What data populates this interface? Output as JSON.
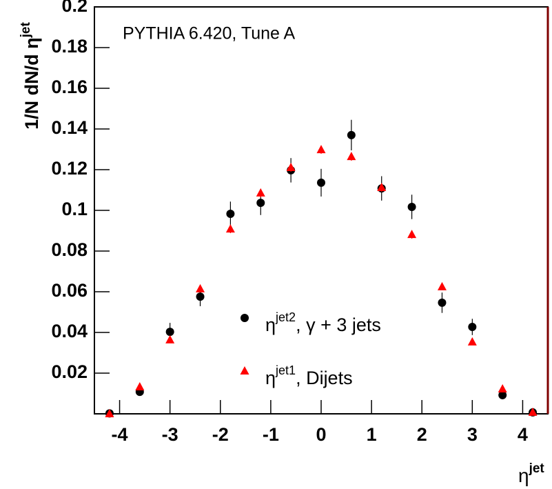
{
  "chart_data": {
    "type": "scatter",
    "title": "PYTHIA 6.420, Tune A",
    "ylabel": {
      "base": "1/N dN/d η",
      "sup": "jet"
    },
    "xlabel": {
      "base": "η",
      "sup": "jet"
    },
    "xlim": [
      -4.5,
      4.5
    ],
    "xticks": [
      -4,
      -3,
      -2,
      -1,
      0,
      1,
      2,
      3,
      4
    ],
    "ylim": [
      0,
      0.2
    ],
    "yticks": [
      0.02,
      0.04,
      0.06,
      0.08,
      0.1,
      0.12,
      0.14,
      0.16,
      0.18,
      0.2
    ],
    "x": [
      -4.2,
      -3.6,
      -3.0,
      -2.4,
      -1.8,
      -1.2,
      -0.6,
      0,
      0.6,
      1.2,
      1.8,
      2.4,
      3.0,
      3.6,
      4.2
    ],
    "series": [
      {
        "name": {
          "base": "η",
          "sup": "jet2",
          "rest": ", γ + 3 jets"
        },
        "color": "#000000",
        "marker": "circle",
        "values": [
          0.0002,
          0.0108,
          0.0403,
          0.0576,
          0.0983,
          0.1037,
          0.1197,
          0.1136,
          0.137,
          0.1108,
          0.1017,
          0.0546,
          0.0427,
          0.0092,
          0.0007
        ],
        "errors": [
          0.001,
          0.002,
          0.0044,
          0.0047,
          0.006,
          0.006,
          0.006,
          0.0068,
          0.0075,
          0.006,
          0.006,
          0.005,
          0.004,
          0.002,
          0.001
        ]
      },
      {
        "name": {
          "base": "η",
          "sup": "jet1",
          "rest": ", Dijets"
        },
        "color": "#ff0000",
        "marker": "triangle",
        "values": [
          0.0,
          0.0132,
          0.0363,
          0.0614,
          0.0908,
          0.1085,
          0.121,
          0.1298,
          0.1264,
          0.1112,
          0.0881,
          0.0624,
          0.0353,
          0.0122,
          0.0007
        ],
        "errors": [
          0.0005,
          0.001,
          0.001,
          0.0015,
          0.002,
          0.002,
          0.002,
          0.002,
          0.002,
          0.002,
          0.002,
          0.0015,
          0.001,
          0.001,
          0.0005
        ]
      }
    ]
  }
}
